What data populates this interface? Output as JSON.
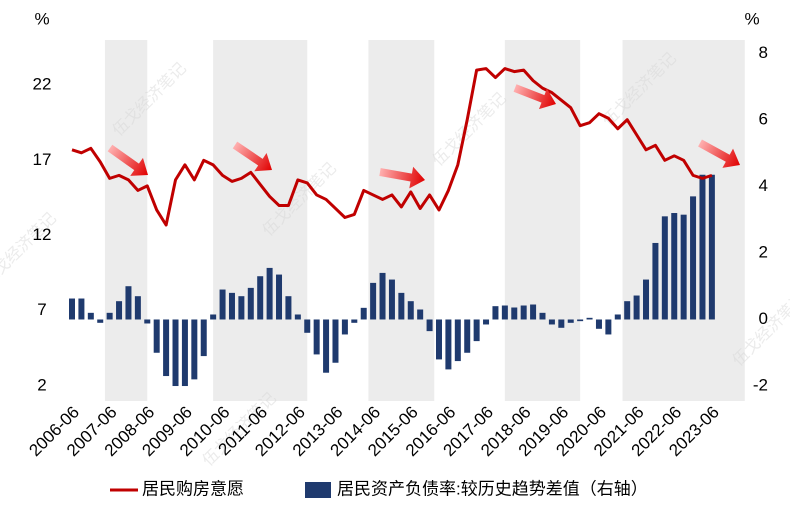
{
  "chart_data": {
    "type": "bar-line",
    "categories": [
      "2006-06",
      null,
      null,
      null,
      "2007-06",
      null,
      null,
      null,
      "2008-06",
      null,
      null,
      null,
      "2009-06",
      null,
      null,
      null,
      "2010-06",
      null,
      null,
      null,
      "2011-06",
      null,
      null,
      null,
      "2012-06",
      null,
      null,
      null,
      "2013-06",
      null,
      null,
      null,
      "2014-06",
      null,
      null,
      null,
      "2015-06",
      null,
      null,
      null,
      "2016-06",
      null,
      null,
      null,
      "2017-06",
      null,
      null,
      null,
      "2018-06",
      null,
      null,
      null,
      "2019-06",
      null,
      null,
      null,
      "2020-06",
      null,
      null,
      null,
      "2021-06",
      null,
      null,
      null,
      "2022-06",
      null,
      null,
      null,
      "2023-06"
    ],
    "series": [
      {
        "name": "居民购房意愿",
        "kind": "line",
        "color": "#c00000",
        "values": [
          17.7,
          17.5,
          17.8,
          16.9,
          15.8,
          16.0,
          15.7,
          15.0,
          15.3,
          13.7,
          12.7,
          15.7,
          16.7,
          15.7,
          17.0,
          16.7,
          16.0,
          15.6,
          15.8,
          16.2,
          15.4,
          14.6,
          14.0,
          14.0,
          15.7,
          15.5,
          14.7,
          14.4,
          13.8,
          13.2,
          13.4,
          15.0,
          14.7,
          14.4,
          14.7,
          13.9,
          14.9,
          13.8,
          14.7,
          13.7,
          15.0,
          16.7,
          19.7,
          23.0,
          23.1,
          22.5,
          23.1,
          22.9,
          23.0,
          22.3,
          21.8,
          21.5,
          21.0,
          20.5,
          19.3,
          19.5,
          20.1,
          19.8,
          19.1,
          19.7,
          18.7,
          17.7,
          18.0,
          17.0,
          17.3,
          17.0,
          16.0,
          15.8,
          16.0
        ]
      },
      {
        "name": "居民资产负债率:较历史趋势差值（右轴）",
        "kind": "bar",
        "axis": "y2",
        "color": "#1f3a6e",
        "values": [
          0.63,
          0.63,
          0.2,
          -0.1,
          0.2,
          0.55,
          1.0,
          0.7,
          -0.12,
          -1.0,
          -1.7,
          -2.0,
          -2.0,
          -1.8,
          -1.1,
          0.15,
          0.9,
          0.8,
          0.7,
          0.95,
          1.3,
          1.55,
          1.35,
          0.7,
          0.15,
          -0.4,
          -1.05,
          -1.6,
          -1.3,
          -0.45,
          -0.1,
          0.35,
          1.1,
          1.4,
          1.2,
          0.8,
          0.55,
          0.3,
          -0.35,
          -1.2,
          -1.5,
          -1.25,
          -1.0,
          -0.65,
          -0.15,
          0.4,
          0.42,
          0.36,
          0.42,
          0.45,
          0.2,
          -0.15,
          -0.25,
          -0.1,
          -0.05,
          0.05,
          -0.28,
          -0.45,
          0.15,
          0.55,
          0.72,
          1.2,
          2.3,
          3.1,
          3.2,
          3.15,
          3.7,
          4.35,
          4.35
        ]
      }
    ],
    "y_unit": "%",
    "y2_unit": "%",
    "ylim": [
      1,
      25
    ],
    "yticks": [
      2,
      7,
      12,
      17,
      22
    ],
    "y2lim": [
      -2.45,
      8.4
    ],
    "y2ticks": [
      -2,
      0,
      2,
      4,
      6,
      8
    ],
    "shaded": [
      [
        3.5,
        8
      ],
      [
        15,
        25
      ],
      [
        31.5,
        38.5
      ],
      [
        46,
        54
      ],
      [
        58.5,
        71.5
      ]
    ],
    "watermark": "伍戈经济笔记"
  }
}
